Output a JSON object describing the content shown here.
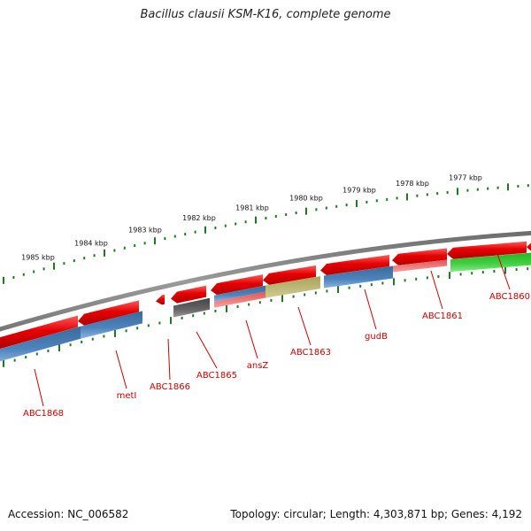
{
  "title": "Bacillus clausii KSM-K16, complete genome",
  "footer": {
    "accession": "Accession: NC_006582",
    "summary": "Topology: circular; Length: 4,303,871 bp; Genes: 4,192"
  },
  "colors": {
    "gene_red": "#e60000",
    "gene_blue": "#4a7fb5",
    "gene_gray": "#555555",
    "gene_pink": "#f07070",
    "gene_olive": "#b5b06a",
    "gene_green": "#33cc33",
    "tick_green": "#1f7a1f",
    "backbone": "#8a8a8a",
    "label_red": "#cc0000"
  },
  "scale_labels": [
    "1985 kbp",
    "1984 kbp",
    "1983 kbp",
    "1982 kbp",
    "1981 kbp",
    "1980 kbp",
    "1979 kbp",
    "1978 kbp",
    "1977 kbp"
  ],
  "gene_labels": [
    "ABC1868",
    "metI",
    "ABC1866",
    "ABC1865",
    "ansZ",
    "ABC1863",
    "gudB",
    "ABC1861",
    "ABC1860"
  ]
}
